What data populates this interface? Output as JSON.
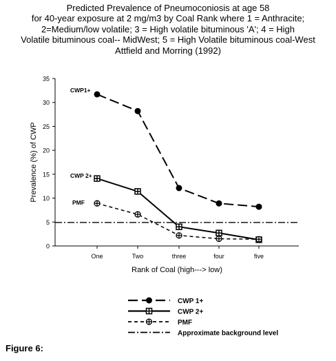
{
  "chart_data": {
    "type": "line",
    "title_lines": [
      "Predicted Prevalence of Pneumoconiosis at age 58",
      "for 40-year exposure at 2 mg/m3 by Coal Rank where 1 = Anthracite;",
      "2=Medium/low volatile; 3 = High volatile bituminous 'A'; 4 = High",
      "Volatile bituminous coal-- MidWest; 5 = High Volatile bituminous coal-West",
      "Attfield and Morring (1992)"
    ],
    "xlabel": "Rank of Coal (high---> low)",
    "ylabel": "Prevalence (%) of CWP",
    "categories": [
      "One",
      "Two",
      "three",
      "four",
      "five"
    ],
    "ylim": [
      0,
      35
    ],
    "yticks": [
      0,
      5,
      10,
      15,
      20,
      25,
      30,
      35
    ],
    "series": [
      {
        "name": "CWP 1+",
        "inline_label": "CWP1+",
        "values": [
          31.7,
          28.2,
          12.1,
          8.9,
          8.2
        ],
        "marker": "filled-circle",
        "dash": "long-dash",
        "stroke_width": 2
      },
      {
        "name": "CWP 2+",
        "inline_label": "CWP 2+",
        "values": [
          14.1,
          11.4,
          4.0,
          2.7,
          1.3
        ],
        "marker": "cross-square",
        "dash": "solid",
        "stroke_width": 2
      },
      {
        "name": "PMF",
        "inline_label": "PMF",
        "values": [
          8.9,
          6.6,
          2.2,
          1.5,
          1.4
        ],
        "marker": "cross-circle",
        "dash": "short-dash",
        "stroke_width": 1.5
      }
    ],
    "reference_line": {
      "name": "Approximate background level",
      "value": 4.9,
      "dash": "dash-dot"
    },
    "legend_position": "bottom",
    "grid": false
  },
  "figure_caption": "Figure 6:"
}
